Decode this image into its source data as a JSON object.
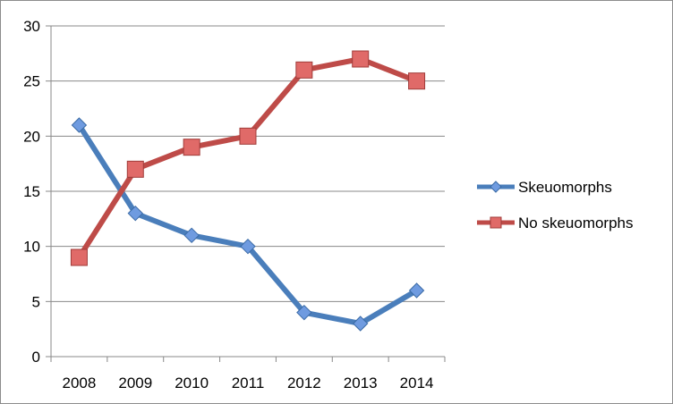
{
  "chart_data": {
    "type": "line",
    "title": "",
    "xlabel": "",
    "ylabel": "",
    "categories": [
      "2008",
      "2009",
      "2010",
      "2011",
      "2012",
      "2013",
      "2014"
    ],
    "ylim": [
      0,
      30
    ],
    "yticks": [
      0,
      5,
      10,
      15,
      20,
      25,
      30
    ],
    "grid": true,
    "legend_position": "right",
    "series": [
      {
        "name": "Skeuomorphs",
        "values": [
          21,
          13,
          11,
          10,
          4,
          3,
          6
        ],
        "color": "#4a7ebb",
        "marker": "diamond"
      },
      {
        "name": "No skeuomorphs",
        "values": [
          9,
          17,
          19,
          20,
          26,
          27,
          25
        ],
        "color": "#be4b48",
        "marker": "square"
      }
    ]
  }
}
